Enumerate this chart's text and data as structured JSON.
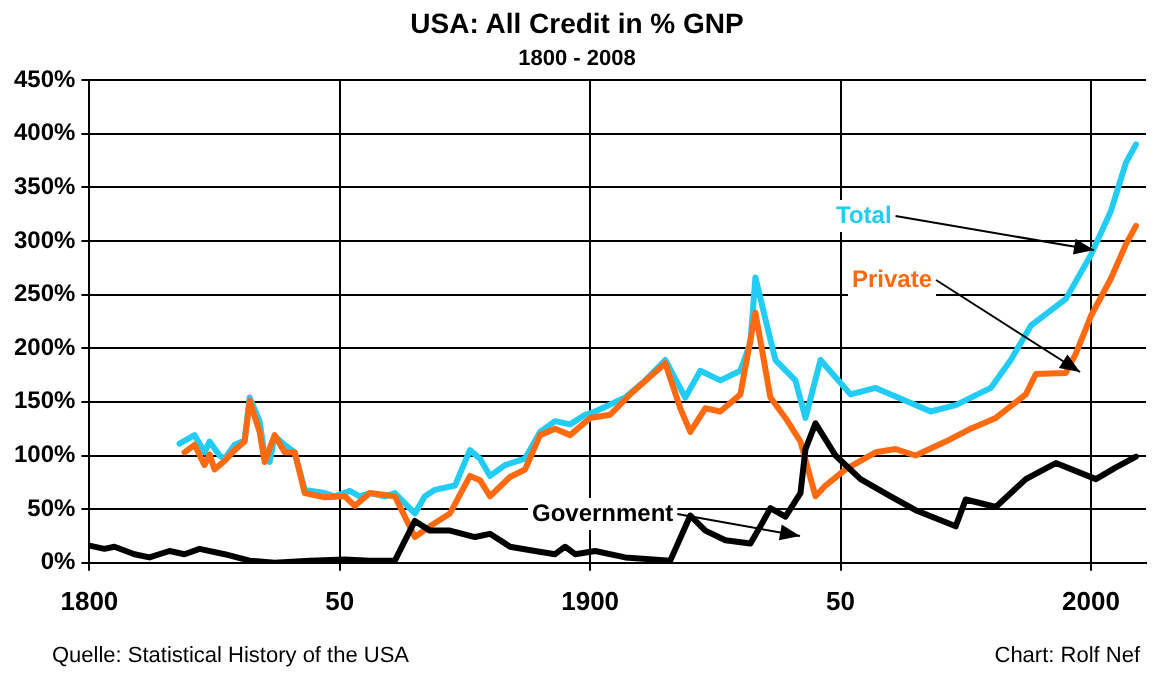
{
  "chart_data": {
    "type": "line",
    "title": "USA: All Credit in % GNP",
    "subtitle": "1800 - 2008",
    "xlim": [
      1800,
      2011
    ],
    "xticks": [
      1800,
      {
        "value": 1850,
        "label": "50"
      },
      1900,
      {
        "value": 1950,
        "label": "50"
      },
      2000
    ],
    "ylim": [
      0,
      450
    ],
    "yticks": [
      {
        "value": 0,
        "label": "0%"
      },
      {
        "value": 50,
        "label": "50%"
      },
      {
        "value": 100,
        "label": "100%"
      },
      {
        "value": 150,
        "label": "150%"
      },
      {
        "value": 200,
        "label": "200%"
      },
      {
        "value": 250,
        "label": "250%"
      },
      {
        "value": 300,
        "label": "300%"
      },
      {
        "value": 350,
        "label": "350%"
      },
      {
        "value": 400,
        "label": "400%"
      },
      {
        "value": 450,
        "label": "450%"
      }
    ],
    "grid": true,
    "legend": false,
    "marker": "none",
    "line_style": "solid",
    "annotations": [
      "Quelle: Statistical History of the USA",
      "Chart: Rolf Nef"
    ],
    "series": [
      {
        "name": "Total",
        "color": "#22ccf5",
        "x": [
          1818,
          1821,
          1823,
          1824,
          1826,
          1827,
          1829,
          1831,
          1832,
          1834,
          1835,
          1836,
          1837,
          1839,
          1841,
          1843,
          1847,
          1849,
          1852,
          1854,
          1856,
          1859,
          1861,
          1865,
          1867,
          1869,
          1873,
          1876,
          1878,
          1880,
          1883,
          1887,
          1890,
          1893,
          1896,
          1899,
          1901,
          1907,
          1911,
          1915,
          1919,
          1922,
          1926,
          1930,
          1932,
          1933,
          1935,
          1937,
          1941,
          1943,
          1946,
          1949,
          1952,
          1957,
          1963,
          1968,
          1973,
          1980,
          1984,
          1988,
          1995,
          2000,
          2004,
          2007,
          2009
        ],
        "values": [
          111,
          119,
          103,
          113,
          100,
          97,
          110,
          114,
          154,
          132,
          100,
          94,
          118,
          110,
          103,
          68,
          65,
          62,
          67,
          62,
          65,
          62,
          65,
          46,
          62,
          68,
          72,
          105,
          97,
          81,
          91,
          97,
          122,
          132,
          129,
          138,
          141,
          154,
          170,
          189,
          154,
          179,
          170,
          179,
          205,
          266,
          227,
          189,
          170,
          135,
          189,
          173,
          157,
          163,
          151,
          141,
          147,
          163,
          189,
          221,
          246,
          287,
          328,
          373,
          390
        ]
      },
      {
        "name": "Private",
        "color": "#ff6a10",
        "x": [
          1819,
          1821,
          1823,
          1824,
          1825,
          1827,
          1829,
          1831,
          1832,
          1834,
          1835,
          1837,
          1839,
          1841,
          1843,
          1847,
          1851,
          1853,
          1856,
          1861,
          1865,
          1868,
          1872,
          1876,
          1878,
          1880,
          1884,
          1887,
          1890,
          1893,
          1896,
          1900,
          1904,
          1908,
          1915,
          1918,
          1920,
          1923,
          1926,
          1930,
          1933,
          1936,
          1939,
          1942,
          1945,
          1947,
          1951,
          1957,
          1961,
          1965,
          1971,
          1976,
          1981,
          1987,
          1989,
          1995,
          1997,
          2000,
          2004,
          2007,
          2009
        ],
        "values": [
          103,
          110,
          91,
          101,
          87,
          95,
          105,
          113,
          151,
          122,
          94,
          119,
          103,
          103,
          65,
          61,
          62,
          53,
          65,
          62,
          24,
          34,
          46,
          81,
          77,
          62,
          80,
          87,
          119,
          125,
          119,
          135,
          138,
          157,
          186,
          144,
          122,
          144,
          141,
          157,
          233,
          154,
          135,
          113,
          62,
          72,
          87,
          103,
          106,
          100,
          113,
          125,
          135,
          157,
          176,
          177,
          195,
          230,
          265,
          297,
          314
        ]
      },
      {
        "name": "Government",
        "color": "#000000",
        "x": [
          1800,
          1803,
          1805,
          1809,
          1812,
          1816,
          1819,
          1822,
          1827,
          1832,
          1837,
          1844,
          1851,
          1856,
          1861,
          1865,
          1868,
          1872,
          1877,
          1880,
          1884,
          1889,
          1893,
          1895,
          1897,
          1901,
          1907,
          1916,
          1920,
          1923,
          1927,
          1932,
          1934,
          1936,
          1939,
          1942,
          1943,
          1945,
          1949,
          1954,
          1960,
          1965,
          1973,
          1975,
          1981,
          1987,
          1993,
          2001,
          2005,
          2009
        ],
        "values": [
          16,
          13,
          15,
          8,
          5,
          11,
          8,
          13,
          8,
          2,
          0,
          2,
          3,
          2,
          2,
          39,
          30,
          30,
          24,
          27,
          15,
          11,
          8,
          15,
          8,
          11,
          5,
          2,
          44,
          30,
          21,
          18,
          34,
          51,
          43,
          65,
          106,
          130,
          100,
          78,
          62,
          49,
          34,
          59,
          52,
          78,
          93,
          78,
          89,
          99
        ]
      }
    ]
  }
}
